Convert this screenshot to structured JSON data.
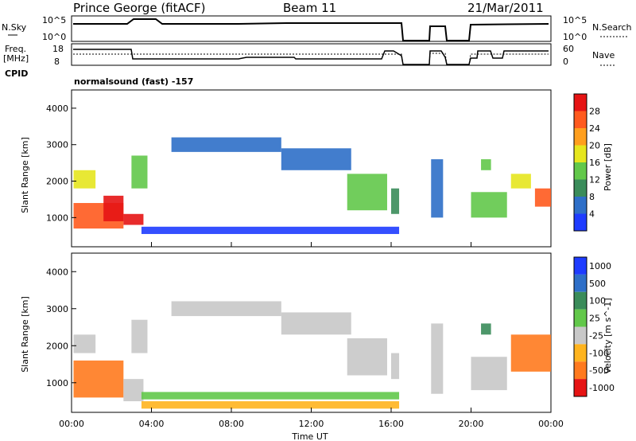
{
  "header": {
    "radar": "Prince George (fitACF)",
    "beam": "Beam 11",
    "date": "21/Mar/2011"
  },
  "noise_panel": {
    "left_label": "N.Sky",
    "left_ticks": [
      "10^5",
      "10^0"
    ],
    "right_label": "N.Search",
    "right_ticks": [
      "10^5",
      "10^0"
    ]
  },
  "freq_panel": {
    "left_label_1": "Freq.",
    "left_label_2": "[MHz]",
    "left_ticks": [
      "18",
      "8"
    ],
    "right_label": "Nave",
    "right_ticks": [
      "60",
      "0"
    ]
  },
  "cpid": {
    "label": "CPID",
    "text": "normalsound (fast) -157"
  },
  "x_axis": {
    "label": "Time UT",
    "ticks": [
      "00:00",
      "04:00",
      "08:00",
      "12:00",
      "16:00",
      "20:00",
      "00:00"
    ]
  },
  "colors": {
    "power_scale": [
      "#1e3cff",
      "#2e6fc8",
      "#3a8c5a",
      "#62c84a",
      "#e6e61e",
      "#ff9f1e",
      "#ff5a1e",
      "#e61414"
    ],
    "velocity_scale": [
      "#1e3cff",
      "#2e6fc8",
      "#3a8c5a",
      "#62c84a",
      "#c8c8c8",
      "#ffb41e",
      "#ff7a1e",
      "#e61414"
    ]
  },
  "chart_data": [
    {
      "type": "heatmap",
      "panel": "power",
      "xlabel": "",
      "ylabel": "Slant Range [km]",
      "xlim": [
        0,
        24
      ],
      "ylim": [
        200,
        4500
      ],
      "yticks": [
        "1000",
        "2000",
        "3000",
        "4000"
      ],
      "colorbar_label": "Power [dB]",
      "colorbar_ticks": [
        "4",
        "8",
        "12",
        "16",
        "20",
        "24",
        "28"
      ],
      "patches": [
        {
          "t0": 0.1,
          "t1": 2.6,
          "r0": 700,
          "r1": 1400,
          "c": 6
        },
        {
          "t0": 0.1,
          "t1": 1.2,
          "r0": 1800,
          "r1": 2300,
          "c": 4
        },
        {
          "t0": 1.6,
          "t1": 2.6,
          "r0": 900,
          "r1": 1600,
          "c": 7
        },
        {
          "t0": 2.6,
          "t1": 3.6,
          "r0": 800,
          "r1": 1100,
          "c": 7
        },
        {
          "t0": 3.0,
          "t1": 3.8,
          "r0": 1800,
          "r1": 2700,
          "c": 3
        },
        {
          "t0": 5.0,
          "t1": 10.5,
          "r0": 2800,
          "r1": 3200,
          "c": 1
        },
        {
          "t0": 3.5,
          "t1": 16.4,
          "r0": 550,
          "r1": 750,
          "c": 0
        },
        {
          "t0": 10.5,
          "t1": 14.0,
          "r0": 2300,
          "r1": 2900,
          "c": 1
        },
        {
          "t0": 13.8,
          "t1": 15.8,
          "r0": 1200,
          "r1": 2200,
          "c": 3
        },
        {
          "t0": 16.0,
          "t1": 16.4,
          "r0": 1100,
          "r1": 1800,
          "c": 2
        },
        {
          "t0": 18.0,
          "t1": 18.6,
          "r0": 1000,
          "r1": 2600,
          "c": 1
        },
        {
          "t0": 20.0,
          "t1": 21.8,
          "r0": 1000,
          "r1": 1700,
          "c": 3
        },
        {
          "t0": 20.5,
          "t1": 21.0,
          "r0": 2300,
          "r1": 2600,
          "c": 3
        },
        {
          "t0": 22.0,
          "t1": 23.0,
          "r0": 1800,
          "r1": 2200,
          "c": 4
        },
        {
          "t0": 23.2,
          "t1": 24.0,
          "r0": 1300,
          "r1": 1800,
          "c": 6
        }
      ]
    },
    {
      "type": "heatmap",
      "panel": "velocity",
      "xlabel": "Time UT",
      "ylabel": "Slant Range [km]",
      "xlim": [
        0,
        24
      ],
      "ylim": [
        200,
        4500
      ],
      "yticks": [
        "1000",
        "2000",
        "3000",
        "4000"
      ],
      "colorbar_label": "Velocity [m s^-1]",
      "colorbar_ticks": [
        "1000",
        "500",
        "100",
        "25",
        "-25",
        "-100",
        "-500",
        "-1000"
      ],
      "patches": [
        {
          "t0": 0.1,
          "t1": 2.6,
          "r0": 600,
          "r1": 1600,
          "c": 6
        },
        {
          "t0": 0.1,
          "t1": 1.2,
          "r0": 1800,
          "r1": 2300,
          "c": 4
        },
        {
          "t0": 2.6,
          "t1": 3.6,
          "r0": 500,
          "r1": 1100,
          "c": 4
        },
        {
          "t0": 3.0,
          "t1": 3.8,
          "r0": 1800,
          "r1": 2700,
          "c": 4
        },
        {
          "t0": 5.0,
          "t1": 10.5,
          "r0": 2800,
          "r1": 3200,
          "c": 4
        },
        {
          "t0": 3.5,
          "t1": 16.4,
          "r0": 550,
          "r1": 750,
          "c": 3
        },
        {
          "t0": 3.5,
          "t1": 16.4,
          "r0": 300,
          "r1": 500,
          "c": 5
        },
        {
          "t0": 10.5,
          "t1": 14.0,
          "r0": 2300,
          "r1": 2900,
          "c": 4
        },
        {
          "t0": 13.8,
          "t1": 15.8,
          "r0": 1200,
          "r1": 2200,
          "c": 4
        },
        {
          "t0": 16.0,
          "t1": 16.4,
          "r0": 1100,
          "r1": 1800,
          "c": 4
        },
        {
          "t0": 18.0,
          "t1": 18.6,
          "r0": 700,
          "r1": 2600,
          "c": 4
        },
        {
          "t0": 20.0,
          "t1": 21.8,
          "r0": 800,
          "r1": 1700,
          "c": 4
        },
        {
          "t0": 20.5,
          "t1": 21.0,
          "r0": 2300,
          "r1": 2600,
          "c": 2
        },
        {
          "t0": 22.0,
          "t1": 24.0,
          "r0": 1300,
          "r1": 2300,
          "c": 6
        }
      ]
    }
  ]
}
